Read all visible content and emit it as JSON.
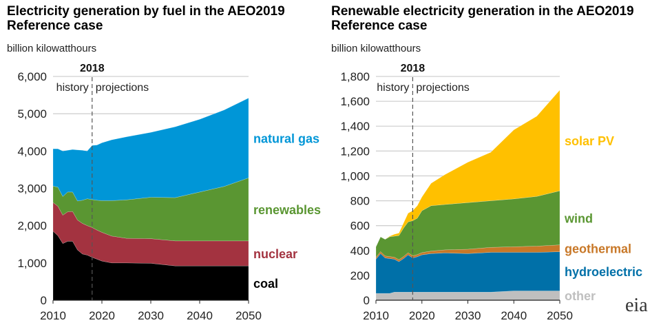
{
  "chart_data": [
    {
      "type": "area",
      "title": "Electricity generation by fuel in the AEO2019 Reference case",
      "ylabel": "billion kilowatthours",
      "ylim": [
        0,
        6000
      ],
      "yticks": [
        "0",
        "1,000",
        "2,000",
        "3,000",
        "4,000",
        "5,000",
        "6,000"
      ],
      "ytick_values": [
        0,
        1000,
        2000,
        3000,
        4000,
        5000,
        6000
      ],
      "xticks": [
        "2010",
        "2020",
        "2030",
        "2040",
        "2050"
      ],
      "xtick_values": [
        2010,
        2020,
        2030,
        2040,
        2050
      ],
      "xlim": [
        2010,
        2050
      ],
      "grid": "horizontal",
      "divider": {
        "year": 2018,
        "label": "2018",
        "left": "history",
        "right": "projections"
      },
      "x": [
        2010,
        2011,
        2012,
        2013,
        2014,
        2015,
        2016,
        2017,
        2018,
        2019,
        2020,
        2022,
        2025,
        2030,
        2035,
        2040,
        2045,
        2050
      ],
      "series": [
        {
          "name": "coal",
          "color": "#000000",
          "values": [
            1850,
            1730,
            1520,
            1580,
            1580,
            1350,
            1240,
            1210,
            1150,
            1100,
            1050,
            1000,
            1000,
            990,
            920,
            920,
            920,
            920
          ]
        },
        {
          "name": "nuclear",
          "color": "#a33340",
          "values": [
            770,
            790,
            760,
            790,
            800,
            800,
            820,
            790,
            800,
            780,
            770,
            720,
            660,
            660,
            670,
            670,
            670,
            670
          ]
        },
        {
          "name": "renewables",
          "color": "#5a9632",
          "values": [
            440,
            510,
            500,
            530,
            520,
            510,
            620,
            720,
            750,
            800,
            850,
            950,
            1030,
            1110,
            1160,
            1310,
            1460,
            1690
          ]
        },
        {
          "name": "natural gas",
          "color": "#0096d7",
          "values": [
            1000,
            1030,
            1220,
            1120,
            1140,
            1370,
            1340,
            1280,
            1450,
            1480,
            1550,
            1630,
            1690,
            1740,
            1900,
            1950,
            2050,
            2140
          ]
        }
      ]
    },
    {
      "type": "area",
      "title": "Renewable electricity generation in the AEO2019 Reference case",
      "ylabel": "billion kilowatthours",
      "ylim": [
        0,
        1800
      ],
      "yticks": [
        "0",
        "200",
        "400",
        "600",
        "800",
        "1,000",
        "1,200",
        "1,400",
        "1,600",
        "1,800"
      ],
      "ytick_values": [
        0,
        200,
        400,
        600,
        800,
        1000,
        1200,
        1400,
        1600,
        1800
      ],
      "xticks": [
        "2010",
        "2020",
        "2030",
        "2040",
        "2050"
      ],
      "xtick_values": [
        2010,
        2020,
        2030,
        2040,
        2050
      ],
      "xlim": [
        2010,
        2050
      ],
      "grid": "horizontal",
      "divider": {
        "year": 2018,
        "label": "2018",
        "left": "history",
        "right": "projections"
      },
      "x": [
        2010,
        2011,
        2012,
        2013,
        2014,
        2015,
        2016,
        2017,
        2018,
        2019,
        2020,
        2022,
        2025,
        2030,
        2035,
        2040,
        2045,
        2050
      ],
      "series": [
        {
          "name": "other",
          "color": "#bfbfbf",
          "values": [
            55,
            55,
            55,
            55,
            65,
            65,
            65,
            65,
            65,
            65,
            65,
            65,
            65,
            65,
            65,
            75,
            75,
            75
          ]
        },
        {
          "name": "hydroelectric",
          "color": "#0070a8",
          "values": [
            275,
            320,
            285,
            280,
            265,
            245,
            270,
            300,
            275,
            285,
            300,
            310,
            315,
            310,
            320,
            310,
            310,
            315
          ]
        },
        {
          "name": "geothermal",
          "color": "#c87828",
          "values": [
            15,
            16,
            16,
            16,
            16,
            16,
            16,
            17,
            17,
            17,
            18,
            20,
            25,
            35,
            40,
            45,
            50,
            55
          ]
        },
        {
          "name": "wind",
          "color": "#5a9632",
          "values": [
            85,
            119,
            134,
            159,
            169,
            194,
            229,
            248,
            283,
            293,
            337,
            365,
            365,
            375,
            375,
            385,
            400,
            435
          ]
        },
        {
          "name": "solar PV",
          "color": "#ffc000",
          "values": [
            0,
            0,
            0,
            5,
            15,
            20,
            40,
            70,
            80,
            100,
            110,
            180,
            240,
            325,
            390,
            555,
            645,
            810
          ]
        }
      ]
    }
  ],
  "logo": "eia"
}
